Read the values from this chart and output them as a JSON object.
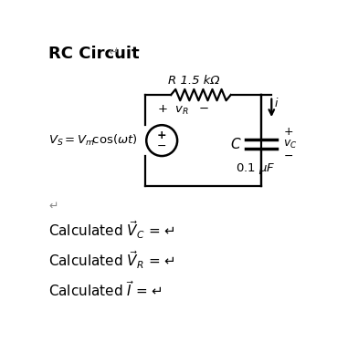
{
  "title": "RC Circuit",
  "title_fontsize": 13,
  "title_fontweight": "bold",
  "background_color": "#ffffff",
  "text_color": "#000000",
  "resistor_label": "R 1.5 kΩ",
  "capacitor_label": "C",
  "capacitor_value": "0.1 μF",
  "v_R_plus": "+",
  "v_R_minus": "−",
  "v_R_var": "v_R",
  "v_C_var": "v_C",
  "current_label": "i",
  "source_label_Vs": "V_S",
  "source_label_eq": " = V_m cos(ωt)",
  "return_arrow": "↵",
  "calc_lines": [
    "Calculated $\\vec{V}_C$ = ↵",
    "Calculated $\\vec{V}_R$ = ↵",
    "Calculated $\\vec{I}$ = ↵"
  ],
  "lw": 1.6,
  "cap_lw": 2.5
}
